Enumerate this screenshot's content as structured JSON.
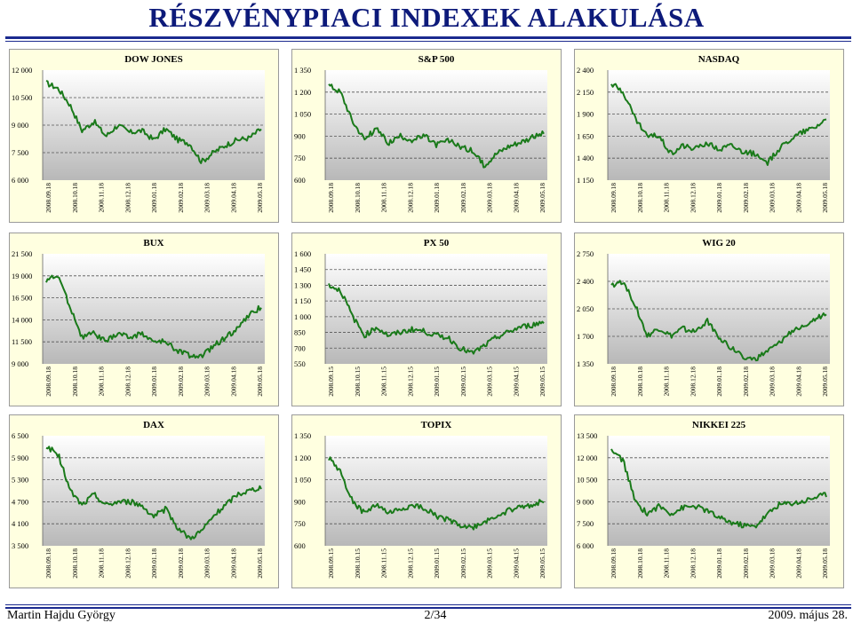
{
  "header": {
    "title": "RÉSZVÉNYPIACI INDEXEK ALAKULÁSA"
  },
  "footer": {
    "author": "Martin Hajdu György",
    "page": "2/34",
    "date": "2009. május 28."
  },
  "chart_data": [
    {
      "type": "line",
      "title": "DOW JONES",
      "yticks": [
        "12 000",
        "10 500",
        "9 000",
        "7 500",
        "6 000"
      ],
      "ylim": [
        6000,
        12000
      ],
      "xticks": [
        "2008.09.18",
        "2008.10.18",
        "2008.11.18",
        "2008.12.18",
        "2009.01.18",
        "2009.02.18",
        "2009.03.18",
        "2009.04.18",
        "2009.05.18"
      ],
      "series": [
        {
          "x": [
            0,
            0.5,
            1,
            1.5,
            2,
            2.5,
            3,
            3.5,
            4,
            4.5,
            5,
            5.5,
            6,
            6.5,
            7,
            7.5,
            8,
            8.5,
            9
          ],
          "values": [
            11300,
            11000,
            10100,
            8700,
            9200,
            8400,
            9000,
            8600,
            8700,
            8200,
            8800,
            8200,
            8000,
            7000,
            7500,
            7900,
            8200,
            8300,
            8800
          ]
        }
      ],
      "grid": true
    },
    {
      "type": "line",
      "title": "S&P 500",
      "yticks": [
        "1 350",
        "1 200",
        "1 050",
        "900",
        "750",
        "600"
      ],
      "ylim": [
        600,
        1350
      ],
      "xticks": [
        "2008.09.18",
        "2008.10.18",
        "2008.11.18",
        "2008.12.18",
        "2009.01.18",
        "2009.02.18",
        "2009.03.18",
        "2009.04.18",
        "2009.05.18"
      ],
      "series": [
        {
          "x": [
            0,
            0.5,
            1,
            1.5,
            2,
            2.5,
            3,
            3.5,
            4,
            4.5,
            5,
            5.5,
            6,
            6.5,
            7,
            7.5,
            8,
            8.5,
            9
          ],
          "values": [
            1250,
            1200,
            1000,
            880,
            950,
            850,
            900,
            870,
            900,
            840,
            870,
            830,
            800,
            700,
            780,
            830,
            860,
            890,
            920
          ]
        }
      ],
      "grid": true
    },
    {
      "type": "line",
      "title": "NASDAQ",
      "yticks": [
        "2 400",
        "2 150",
        "1 900",
        "1 650",
        "1 400",
        "1 150"
      ],
      "ylim": [
        1150,
        2400
      ],
      "xticks": [
        "2008.09.18",
        "2008.10.18",
        "2008.11.18",
        "2008.12.18",
        "2009.01.18",
        "2009.02.18",
        "2009.03.18",
        "2009.04.18",
        "2009.05.18"
      ],
      "series": [
        {
          "x": [
            0,
            0.5,
            1,
            1.5,
            2,
            2.5,
            3,
            3.5,
            4,
            4.5,
            5,
            5.5,
            6,
            6.5,
            7,
            7.5,
            8,
            8.5,
            9
          ],
          "values": [
            2250,
            2150,
            1850,
            1650,
            1650,
            1450,
            1550,
            1500,
            1580,
            1500,
            1550,
            1480,
            1450,
            1330,
            1500,
            1620,
            1700,
            1750,
            1850
          ]
        }
      ],
      "grid": true
    },
    {
      "type": "line",
      "title": "BUX",
      "yticks": [
        "21 500",
        "19 000",
        "16 500",
        "14 000",
        "11 500",
        "9 000"
      ],
      "ylim": [
        9000,
        21500
      ],
      "xticks": [
        "2008.09.18",
        "2008.10.18",
        "2008.11.18",
        "2008.12.18",
        "2009.01.18",
        "2009.02.18",
        "2009.03.18",
        "2009.04.18",
        "2009.05.18"
      ],
      "series": [
        {
          "x": [
            0,
            0.5,
            1,
            1.5,
            2,
            2.5,
            3,
            3.5,
            4,
            4.5,
            5,
            5.5,
            6,
            6.5,
            7,
            7.5,
            8,
            8.5,
            9
          ],
          "values": [
            18500,
            19000,
            15500,
            12000,
            12500,
            11500,
            12500,
            12000,
            12500,
            11500,
            11500,
            10500,
            10000,
            9800,
            11000,
            12000,
            13000,
            14500,
            15500
          ]
        }
      ],
      "grid": true
    },
    {
      "type": "line",
      "title": "PX 50",
      "yticks": [
        "1 600",
        "1 450",
        "1 300",
        "1 150",
        "1 000",
        "850",
        "700",
        "550"
      ],
      "ylim": [
        550,
        1600
      ],
      "xticks": [
        "2008.09.15",
        "2008.10.15",
        "2008.11.15",
        "2008.12.15",
        "2009.01.15",
        "2009.02.15",
        "2009.03.15",
        "2009.04.15",
        "2009.05.15"
      ],
      "series": [
        {
          "x": [
            0,
            0.5,
            1,
            1.5,
            2,
            2.5,
            3,
            3.5,
            4,
            4.5,
            5,
            5.5,
            6,
            6.5,
            7,
            7.5,
            8,
            8.5,
            9
          ],
          "values": [
            1300,
            1250,
            1000,
            820,
            900,
            820,
            850,
            880,
            860,
            820,
            800,
            700,
            650,
            720,
            800,
            850,
            900,
            920,
            950
          ]
        }
      ],
      "grid": true
    },
    {
      "type": "line",
      "title": "WIG 20",
      "yticks": [
        "2 750",
        "2 400",
        "2 050",
        "1 700",
        "1 350"
      ],
      "ylim": [
        1350,
        2750
      ],
      "xticks": [
        "2008.09.18",
        "2008.10.18",
        "2008.11.18",
        "2008.12.18",
        "2009.01.18",
        "2009.02.18",
        "2009.03.18",
        "2009.04.18",
        "2009.05.18"
      ],
      "series": [
        {
          "x": [
            0,
            0.5,
            1,
            1.5,
            2,
            2.5,
            3,
            3.5,
            4,
            4.5,
            5,
            5.5,
            6,
            6.5,
            7,
            7.5,
            8,
            8.5,
            9
          ],
          "values": [
            2350,
            2400,
            2100,
            1700,
            1800,
            1700,
            1800,
            1750,
            1900,
            1700,
            1550,
            1450,
            1400,
            1500,
            1600,
            1750,
            1850,
            1900,
            2000
          ]
        }
      ],
      "grid": true
    },
    {
      "type": "line",
      "title": "DAX",
      "yticks": [
        "6 500",
        "5 900",
        "5 300",
        "4 700",
        "4 100",
        "3 500"
      ],
      "ylim": [
        3500,
        6500
      ],
      "xticks": [
        "2008.09.18",
        "2008.10.18",
        "2008.11.18",
        "2008.12.18",
        "2009.01.18",
        "2009.02.18",
        "2009.03.18",
        "2009.04.18",
        "2009.05.18"
      ],
      "series": [
        {
          "x": [
            0,
            0.5,
            1,
            1.5,
            2,
            2.5,
            3,
            3.5,
            4,
            4.5,
            5,
            5.5,
            6,
            6.5,
            7,
            7.5,
            8,
            8.5,
            9
          ],
          "values": [
            6200,
            6000,
            5000,
            4600,
            4900,
            4600,
            4700,
            4700,
            4600,
            4300,
            4500,
            4000,
            3700,
            3900,
            4300,
            4600,
            4900,
            5000,
            5100
          ]
        }
      ],
      "grid": true
    },
    {
      "type": "line",
      "title": "TOPIX",
      "yticks": [
        "1 350",
        "1 200",
        "1 050",
        "900",
        "750",
        "600"
      ],
      "ylim": [
        600,
        1350
      ],
      "xticks": [
        "2008.09.15",
        "2008.10.15",
        "2008.11.15",
        "2008.12.15",
        "2009.01.15",
        "2009.02.15",
        "2009.03.15",
        "2009.04.15",
        "2009.05.15"
      ],
      "series": [
        {
          "x": [
            0,
            0.5,
            1,
            1.5,
            2,
            2.5,
            3,
            3.5,
            4,
            4.5,
            5,
            5.5,
            6,
            6.5,
            7,
            7.5,
            8,
            8.5,
            9
          ],
          "values": [
            1200,
            1100,
            900,
            820,
            880,
            820,
            850,
            870,
            860,
            800,
            780,
            740,
            720,
            760,
            800,
            840,
            860,
            880,
            910
          ]
        }
      ],
      "grid": true
    },
    {
      "type": "line",
      "title": "NIKKEI 225",
      "yticks": [
        "13 500",
        "12 000",
        "10 500",
        "9 000",
        "7 500",
        "6 000"
      ],
      "ylim": [
        6000,
        13500
      ],
      "xticks": [
        "2008.09.18",
        "2008.10.18",
        "2008.11.18",
        "2008.12.18",
        "2009.01.18",
        "2009.02.18",
        "2009.03.18",
        "2009.04.18",
        "2009.05.18"
      ],
      "series": [
        {
          "x": [
            0,
            0.5,
            1,
            1.5,
            2,
            2.5,
            3,
            3.5,
            4,
            4.5,
            5,
            5.5,
            6,
            6.5,
            7,
            7.5,
            8,
            8.5,
            9
          ],
          "values": [
            12500,
            11800,
            9000,
            8200,
            8700,
            8200,
            8600,
            8700,
            8400,
            7900,
            7600,
            7400,
            7300,
            8100,
            8800,
            8900,
            9000,
            9300,
            9500
          ]
        }
      ],
      "grid": true
    }
  ],
  "colors": {
    "title": "#0d1a7a",
    "line": "#1a7a1a",
    "panel_bg": "#ffffe0",
    "plot_top": "#ffffff",
    "plot_bottom": "#b8b8b8"
  }
}
